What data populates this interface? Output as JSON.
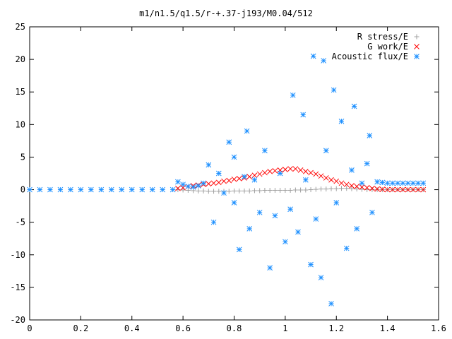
{
  "chart_data": {
    "type": "scatter",
    "title": "m1/n1.5/q1.5/r-+.37-j193/M0.04/512",
    "xlabel": "",
    "ylabel": "",
    "xlim": [
      0,
      1.6
    ],
    "ylim": [
      -20,
      25
    ],
    "x_ticks": [
      "0",
      "0.2",
      "0.4",
      "0.6",
      "0.8",
      "1",
      "1.2",
      "1.4",
      "1.6"
    ],
    "y_ticks": [
      "25",
      "20",
      "15",
      "10",
      "5",
      "0",
      "-5",
      "-10",
      "-15",
      "-20"
    ],
    "legend_position": "top-right",
    "grid": false,
    "series": [
      {
        "name": "R stress/E",
        "marker": "plus",
        "color": "#a0a0a0",
        "points": [
          [
            0.58,
            0.0
          ],
          [
            0.6,
            -0.05
          ],
          [
            0.62,
            -0.1
          ],
          [
            0.64,
            -0.15
          ],
          [
            0.66,
            -0.2
          ],
          [
            0.68,
            -0.2
          ],
          [
            0.7,
            -0.25
          ],
          [
            0.72,
            -0.25
          ],
          [
            0.74,
            -0.25
          ],
          [
            0.76,
            -0.25
          ],
          [
            0.78,
            -0.25
          ],
          [
            0.8,
            -0.2
          ],
          [
            0.82,
            -0.2
          ],
          [
            0.84,
            -0.2
          ],
          [
            0.86,
            -0.2
          ],
          [
            0.88,
            -0.15
          ],
          [
            0.9,
            -0.15
          ],
          [
            0.92,
            -0.1
          ],
          [
            0.94,
            -0.1
          ],
          [
            0.96,
            -0.1
          ],
          [
            0.98,
            -0.1
          ],
          [
            1.0,
            -0.1
          ],
          [
            1.02,
            -0.1
          ],
          [
            1.04,
            -0.05
          ],
          [
            1.06,
            -0.05
          ],
          [
            1.08,
            -0.05
          ],
          [
            1.1,
            0.0
          ],
          [
            1.12,
            0.05
          ],
          [
            1.14,
            0.1
          ],
          [
            1.16,
            0.1
          ],
          [
            1.18,
            0.15
          ],
          [
            1.2,
            0.15
          ],
          [
            1.22,
            0.2
          ],
          [
            1.24,
            0.2
          ],
          [
            1.26,
            0.15
          ],
          [
            1.28,
            0.1
          ],
          [
            1.3,
            0.05
          ],
          [
            1.32,
            0.0
          ],
          [
            1.34,
            0.0
          ],
          [
            1.36,
            0.0
          ],
          [
            1.38,
            0.0
          ],
          [
            1.4,
            0.0
          ],
          [
            1.42,
            0.0
          ],
          [
            1.44,
            0.0
          ],
          [
            1.46,
            0.0
          ],
          [
            1.48,
            0.0
          ],
          [
            1.5,
            0.0
          ],
          [
            1.52,
            0.0
          ],
          [
            1.54,
            0.0
          ]
        ]
      },
      {
        "name": "G work/E",
        "marker": "cross",
        "color": "#ff0000",
        "points": [
          [
            0.58,
            0.2
          ],
          [
            0.6,
            0.3
          ],
          [
            0.62,
            0.5
          ],
          [
            0.64,
            0.6
          ],
          [
            0.66,
            0.7
          ],
          [
            0.68,
            0.8
          ],
          [
            0.7,
            0.9
          ],
          [
            0.72,
            1.0
          ],
          [
            0.74,
            1.1
          ],
          [
            0.76,
            1.3
          ],
          [
            0.78,
            1.4
          ],
          [
            0.8,
            1.6
          ],
          [
            0.82,
            1.7
          ],
          [
            0.84,
            1.8
          ],
          [
            0.86,
            2.0
          ],
          [
            0.88,
            2.2
          ],
          [
            0.9,
            2.4
          ],
          [
            0.92,
            2.6
          ],
          [
            0.94,
            2.8
          ],
          [
            0.96,
            2.9
          ],
          [
            0.98,
            3.0
          ],
          [
            1.0,
            3.1
          ],
          [
            1.02,
            3.2
          ],
          [
            1.04,
            3.2
          ],
          [
            1.06,
            3.0
          ],
          [
            1.08,
            2.8
          ],
          [
            1.1,
            2.6
          ],
          [
            1.12,
            2.4
          ],
          [
            1.14,
            2.1
          ],
          [
            1.16,
            1.8
          ],
          [
            1.18,
            1.5
          ],
          [
            1.2,
            1.3
          ],
          [
            1.22,
            1.0
          ],
          [
            1.24,
            0.8
          ],
          [
            1.26,
            0.6
          ],
          [
            1.28,
            0.5
          ],
          [
            1.3,
            0.4
          ],
          [
            1.32,
            0.3
          ],
          [
            1.34,
            0.2
          ],
          [
            1.36,
            0.1
          ],
          [
            1.38,
            0.05
          ],
          [
            1.4,
            0.0
          ],
          [
            1.42,
            0.0
          ],
          [
            1.44,
            0.0
          ],
          [
            1.46,
            0.0
          ],
          [
            1.48,
            0.0
          ],
          [
            1.5,
            0.0
          ],
          [
            1.52,
            0.0
          ],
          [
            1.54,
            0.0
          ]
        ]
      },
      {
        "name": "Acoustic flux/E",
        "marker": "star",
        "color": "#1e90ff",
        "points": [
          [
            0.0,
            0.0
          ],
          [
            0.04,
            0.0
          ],
          [
            0.08,
            0.0
          ],
          [
            0.12,
            0.0
          ],
          [
            0.16,
            0.0
          ],
          [
            0.2,
            0.0
          ],
          [
            0.24,
            0.0
          ],
          [
            0.28,
            0.0
          ],
          [
            0.32,
            0.0
          ],
          [
            0.36,
            0.0
          ],
          [
            0.4,
            0.0
          ],
          [
            0.44,
            0.0
          ],
          [
            0.48,
            0.0
          ],
          [
            0.52,
            0.0
          ],
          [
            0.56,
            0.0
          ],
          [
            0.58,
            1.2
          ],
          [
            0.6,
            0.8
          ],
          [
            0.62,
            0.5
          ],
          [
            0.64,
            0.4
          ],
          [
            0.66,
            0.6
          ],
          [
            0.68,
            1.0
          ],
          [
            0.7,
            3.8
          ],
          [
            0.72,
            -5.0
          ],
          [
            0.74,
            2.5
          ],
          [
            0.76,
            -0.5
          ],
          [
            0.78,
            7.3
          ],
          [
            0.8,
            -2.0
          ],
          [
            0.8,
            5.0
          ],
          [
            0.82,
            -9.2
          ],
          [
            0.84,
            2.0
          ],
          [
            0.85,
            9.0
          ],
          [
            0.86,
            -6.0
          ],
          [
            0.88,
            1.5
          ],
          [
            0.9,
            -3.5
          ],
          [
            0.92,
            6.0
          ],
          [
            0.94,
            -12.0
          ],
          [
            0.96,
            -4.0
          ],
          [
            0.98,
            2.5
          ],
          [
            1.0,
            -8.0
          ],
          [
            1.02,
            -3.0
          ],
          [
            1.03,
            14.5
          ],
          [
            1.05,
            -6.5
          ],
          [
            1.07,
            11.5
          ],
          [
            1.08,
            1.5
          ],
          [
            1.1,
            -11.5
          ],
          [
            1.11,
            20.5
          ],
          [
            1.12,
            -4.5
          ],
          [
            1.14,
            -13.5
          ],
          [
            1.15,
            19.8
          ],
          [
            1.16,
            6.0
          ],
          [
            1.18,
            -17.5
          ],
          [
            1.19,
            15.3
          ],
          [
            1.2,
            -2.0
          ],
          [
            1.22,
            10.5
          ],
          [
            1.24,
            -9.0
          ],
          [
            1.26,
            3.0
          ],
          [
            1.27,
            12.8
          ],
          [
            1.28,
            -6.0
          ],
          [
            1.3,
            1.0
          ],
          [
            1.32,
            4.0
          ],
          [
            1.33,
            8.3
          ],
          [
            1.34,
            -3.5
          ],
          [
            1.36,
            1.2
          ],
          [
            1.38,
            1.1
          ],
          [
            1.4,
            1.0
          ],
          [
            1.42,
            1.0
          ],
          [
            1.44,
            1.0
          ],
          [
            1.46,
            1.0
          ],
          [
            1.48,
            1.0
          ],
          [
            1.5,
            1.0
          ],
          [
            1.52,
            1.0
          ],
          [
            1.54,
            1.0
          ]
        ]
      }
    ]
  }
}
